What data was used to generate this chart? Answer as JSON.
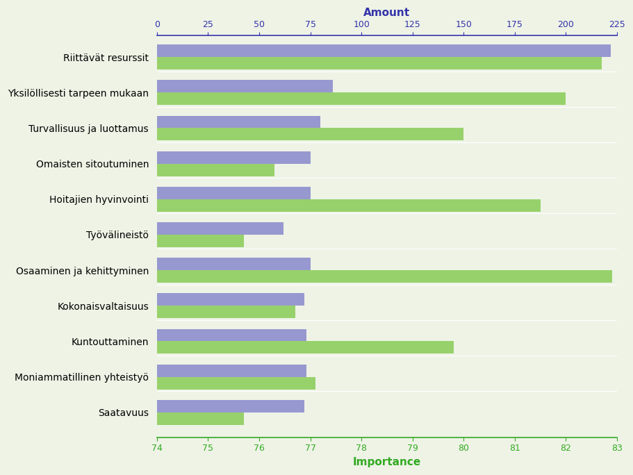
{
  "categories": [
    "Riittävät resurssit",
    "Yksilöllisesti tarpeen mukaan",
    "Turvallisuus ja luottamus",
    "Omaisten sitoutuminen",
    "Hoitajien hyvinvointi",
    "Työvälineistö",
    "Osaaminen ja kehittyminen",
    "Kokonaisvaltaisuus",
    "Kuntouttaminen",
    "Moniammatillinen yhteistyö",
    "Saatavuus"
  ],
  "amount_values": [
    222,
    86,
    80,
    75,
    75,
    62,
    75,
    72,
    73,
    73,
    72
  ],
  "importance_values": [
    82.7,
    82.0,
    80.0,
    76.3,
    81.5,
    75.7,
    82.9,
    76.7,
    79.8,
    77.1,
    75.7
  ],
  "blue_color": "#8888cc",
  "green_color": "#88cc55",
  "amount_xlim": [
    0,
    225
  ],
  "importance_xlim": [
    74,
    83
  ],
  "amount_ticks": [
    0,
    25,
    50,
    75,
    100,
    125,
    150,
    175,
    200,
    225
  ],
  "importance_ticks": [
    74,
    75,
    76,
    77,
    78,
    79,
    80,
    81,
    82,
    83
  ],
  "amount_label": "Amount",
  "importance_label": "Importance",
  "amount_label_color": "#3333aa",
  "importance_label_color": "#33aa22",
  "background_color": "#eef3e6",
  "bar_height": 0.35,
  "figsize": [
    9.11,
    6.84
  ],
  "dpi": 100
}
